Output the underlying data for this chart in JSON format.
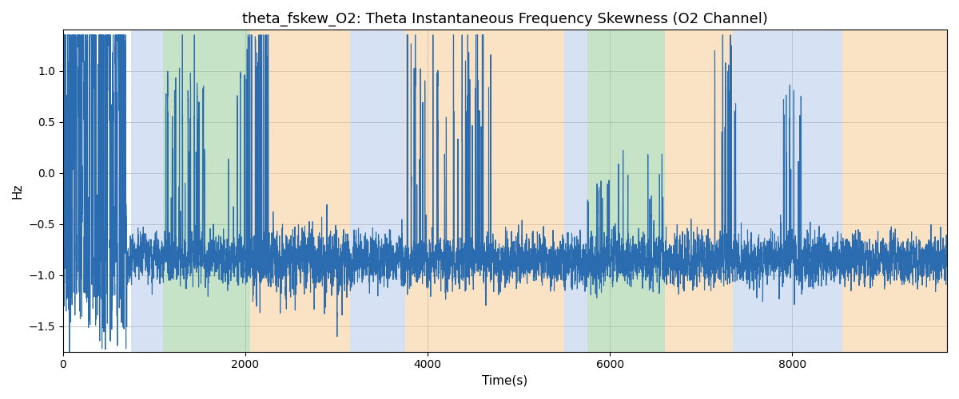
{
  "title": "theta_fskew_O2: Theta Instantaneous Frequency Skewness (O2 Channel)",
  "xlabel": "Time(s)",
  "ylabel": "Hz",
  "xlim": [
    0,
    9700
  ],
  "ylim": [
    -1.75,
    1.4
  ],
  "line_color": "#2b6cb0",
  "line_width": 0.8,
  "background_color": "#ffffff",
  "grid_color": "#b0b0b0",
  "bg_bands": [
    {
      "xmin": 750,
      "xmax": 1100,
      "color": "#aec6e8",
      "alpha": 0.5
    },
    {
      "xmin": 1100,
      "xmax": 2050,
      "color": "#90c990",
      "alpha": 0.5
    },
    {
      "xmin": 2050,
      "xmax": 3150,
      "color": "#f4c98a",
      "alpha": 0.5
    },
    {
      "xmin": 3150,
      "xmax": 3500,
      "color": "#aec6e8",
      "alpha": 0.5
    },
    {
      "xmin": 3500,
      "xmax": 3750,
      "color": "#aec6e8",
      "alpha": 0.5
    },
    {
      "xmin": 3750,
      "xmax": 4600,
      "color": "#f4c98a",
      "alpha": 0.5
    },
    {
      "xmin": 4600,
      "xmax": 5500,
      "color": "#f4c98a",
      "alpha": 0.5
    },
    {
      "xmin": 5500,
      "xmax": 5750,
      "color": "#aec6e8",
      "alpha": 0.5
    },
    {
      "xmin": 5750,
      "xmax": 6600,
      "color": "#90c990",
      "alpha": 0.5
    },
    {
      "xmin": 6600,
      "xmax": 7350,
      "color": "#f4c98a",
      "alpha": 0.5
    },
    {
      "xmin": 7350,
      "xmax": 7600,
      "color": "#aec6e8",
      "alpha": 0.5
    },
    {
      "xmin": 7600,
      "xmax": 8550,
      "color": "#aec6e8",
      "alpha": 0.5
    },
    {
      "xmin": 8550,
      "xmax": 9700,
      "color": "#f4c98a",
      "alpha": 0.5
    }
  ],
  "xticks": [
    0,
    2000,
    4000,
    6000,
    8000
  ],
  "yticks": [
    -1.5,
    -1.0,
    -0.5,
    0.0,
    0.5,
    1.0
  ],
  "seed": 42,
  "n_points": 9700,
  "title_fontsize": 13,
  "label_fontsize": 11
}
